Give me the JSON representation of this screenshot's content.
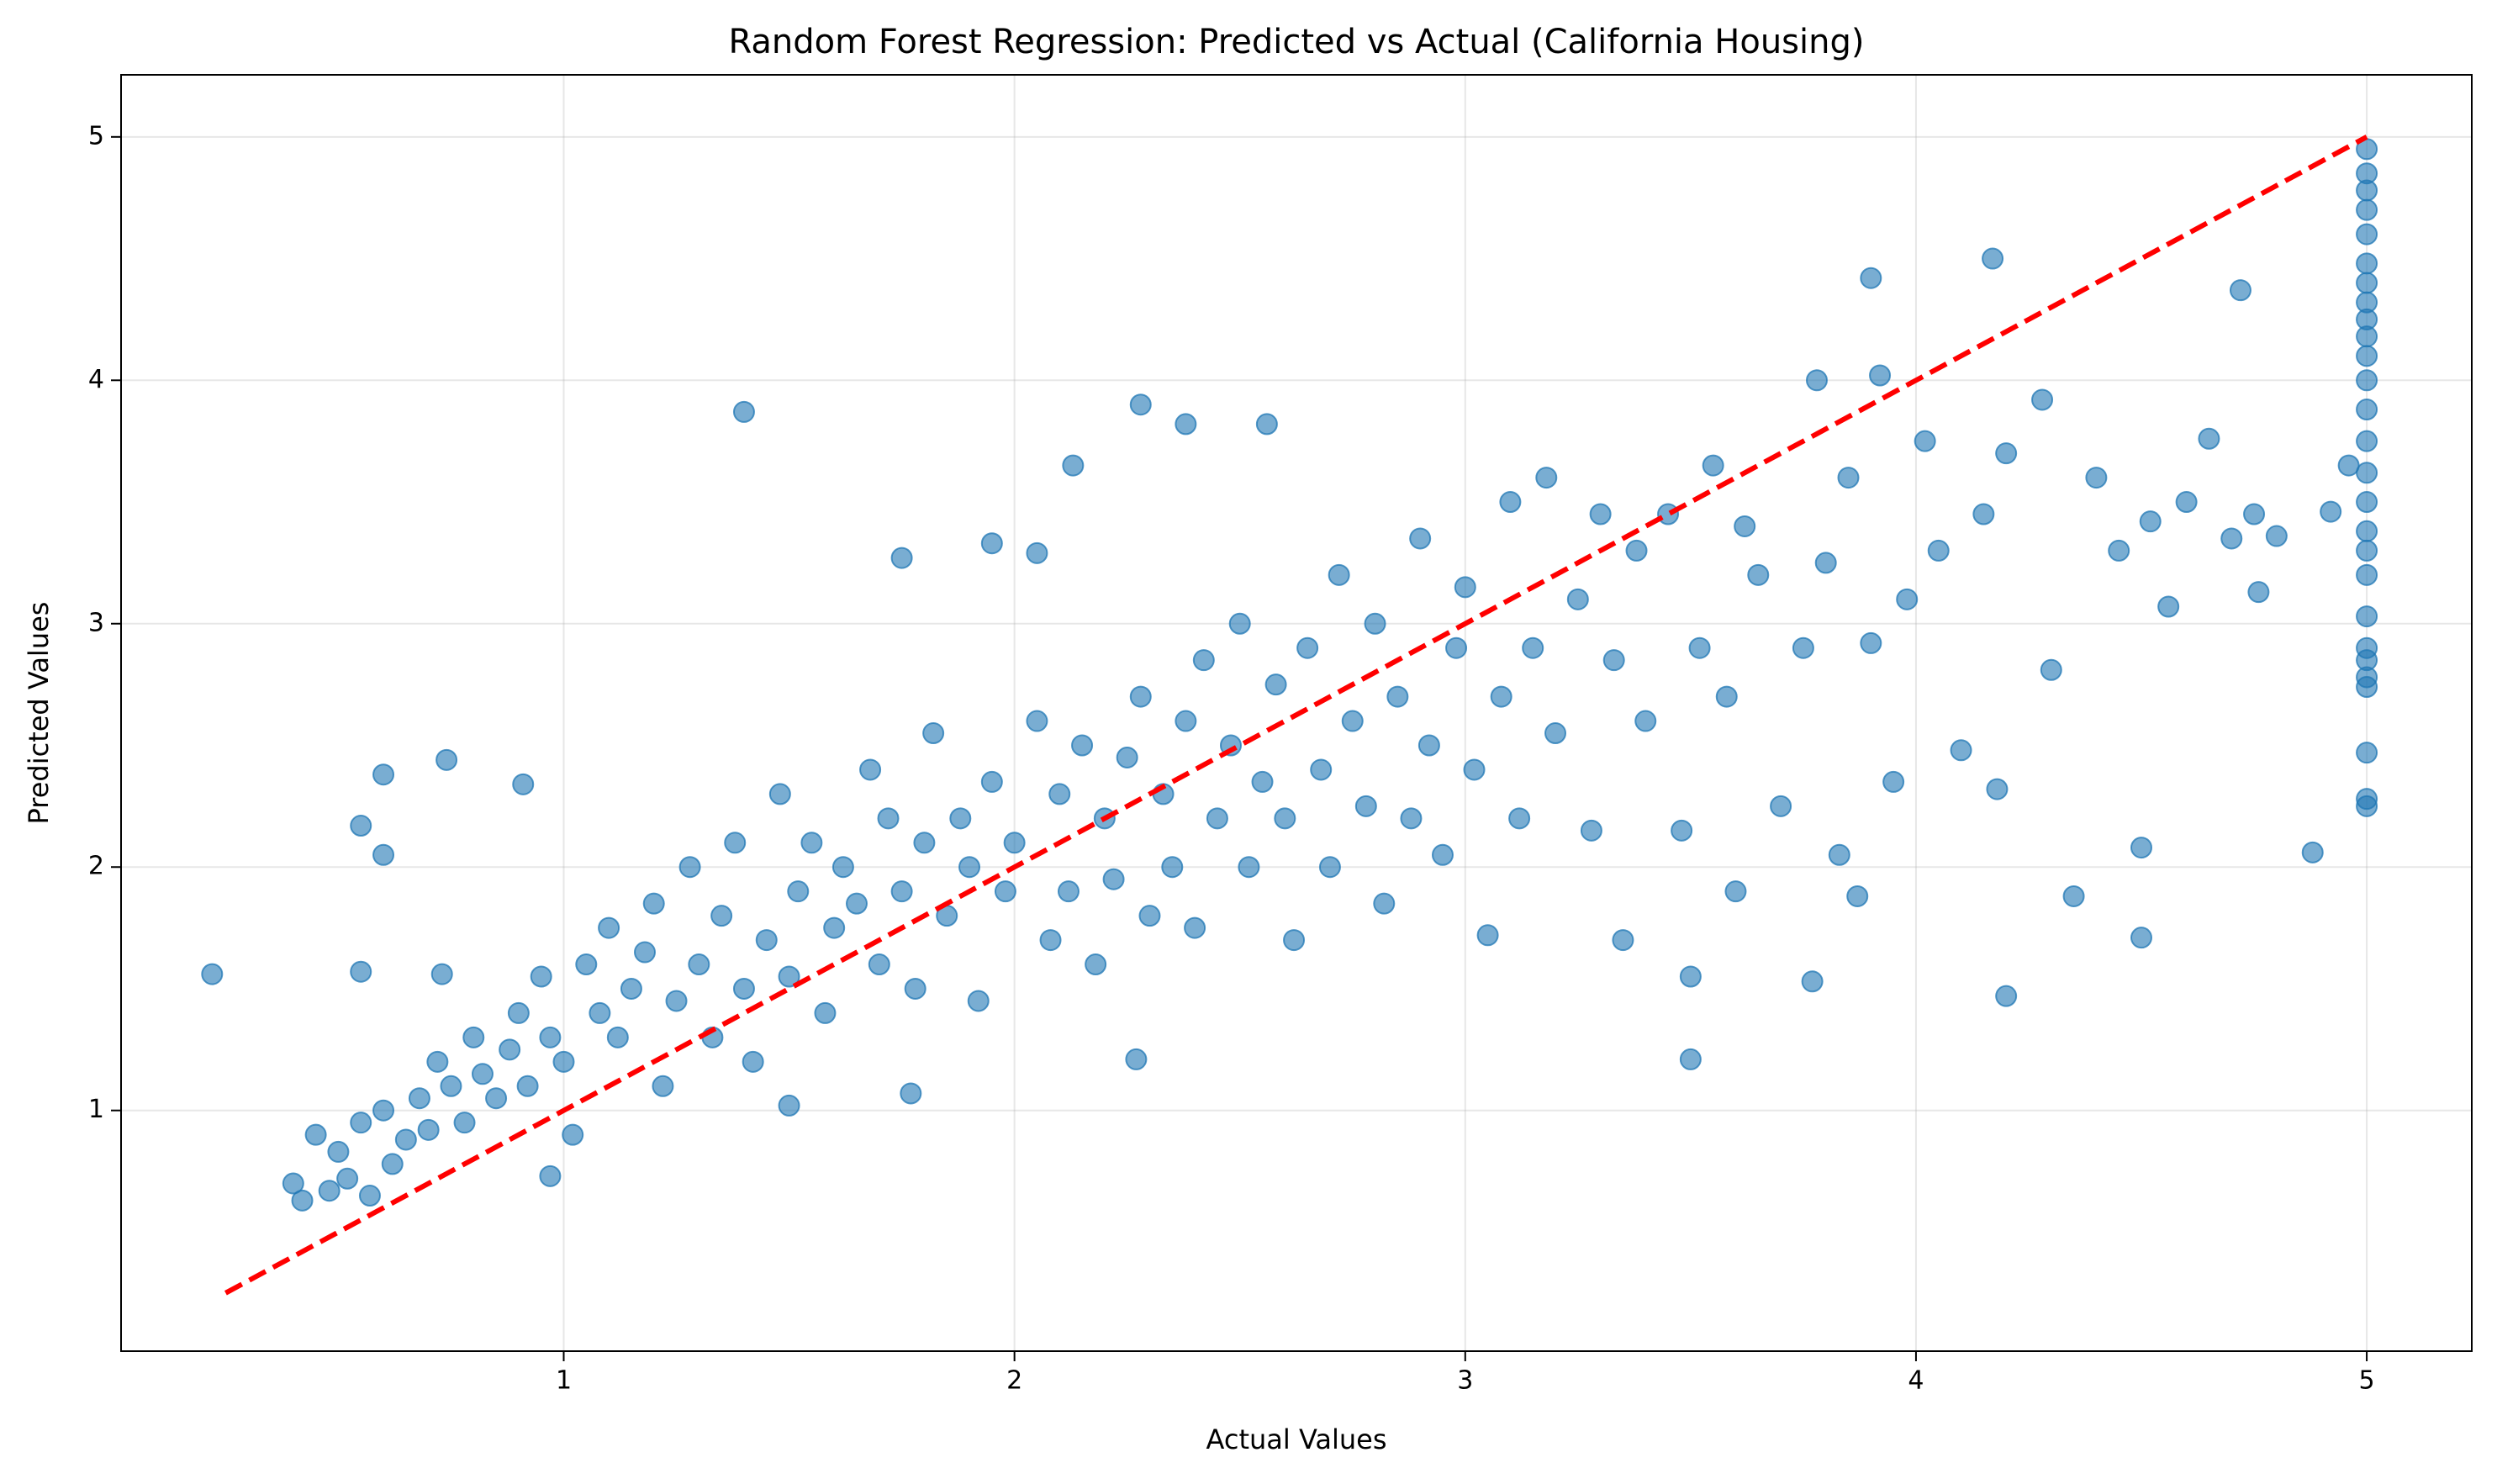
{
  "chart_data": {
    "type": "scatter",
    "title": "Random Forest Regression: Predicted vs Actual (California Housing)",
    "xlabel": "Actual Values",
    "ylabel": "Predicted Values",
    "color": "#1f77b4",
    "x": [
      0.22,
      1.4,
      2.28,
      2.38,
      2.56,
      4.17,
      3.9,
      4.72,
      3.5,
      2.27,
      4.2,
      4.88,
      0.6,
      0.74,
      0.91,
      0.55,
      0.6,
      0.55,
      0.73,
      1.75,
      1.95,
      2.13,
      2.05,
      1.77,
      1.5,
      0.97,
      0.4,
      0.42,
      0.45,
      0.48,
      0.5,
      0.52,
      0.55,
      0.57,
      0.6,
      0.62,
      0.65,
      0.68,
      0.7,
      0.72,
      0.75,
      0.78,
      0.8,
      0.82,
      0.85,
      0.88,
      0.9,
      0.92,
      0.95,
      0.97,
      1.0,
      1.02,
      1.05,
      1.08,
      1.1,
      1.12,
      1.15,
      1.18,
      1.2,
      1.22,
      1.25,
      1.28,
      1.3,
      1.33,
      1.35,
      1.38,
      1.4,
      1.42,
      1.45,
      1.48,
      1.5,
      1.52,
      1.55,
      1.58,
      1.6,
      1.62,
      1.65,
      1.68,
      1.7,
      1.72,
      1.75,
      1.78,
      1.8,
      1.82,
      1.85,
      1.88,
      1.9,
      1.92,
      1.95,
      1.98,
      2.0,
      2.05,
      2.08,
      2.1,
      2.12,
      2.15,
      2.18,
      2.2,
      2.22,
      2.25,
      2.28,
      2.3,
      2.33,
      2.35,
      2.38,
      2.4,
      2.42,
      2.45,
      2.48,
      2.5,
      2.52,
      2.55,
      2.58,
      2.6,
      2.62,
      2.65,
      2.68,
      2.7,
      2.72,
      2.75,
      2.78,
      2.8,
      2.82,
      2.85,
      2.88,
      2.9,
      2.92,
      2.95,
      2.98,
      3.0,
      3.02,
      3.05,
      3.08,
      3.1,
      3.12,
      3.15,
      3.18,
      3.2,
      3.25,
      3.28,
      3.3,
      3.33,
      3.35,
      3.38,
      3.4,
      3.45,
      3.48,
      3.5,
      3.52,
      3.55,
      3.58,
      3.6,
      3.62,
      3.65,
      3.7,
      3.75,
      3.77,
      3.78,
      3.8,
      3.83,
      3.85,
      3.87,
      3.9,
      3.92,
      3.95,
      3.98,
      4.02,
      4.05,
      4.1,
      4.15,
      4.18,
      4.2,
      4.28,
      4.3,
      4.35,
      4.4,
      4.45,
      4.5,
      4.5,
      4.52,
      4.56,
      4.6,
      4.65,
      4.7,
      4.75,
      4.76,
      4.8,
      4.92,
      4.96,
      5,
      5,
      5,
      5,
      5,
      5,
      5,
      5,
      5,
      5,
      5,
      5,
      5,
      5,
      5,
      5,
      5,
      5,
      5,
      5,
      5,
      5,
      5,
      5,
      5,
      5,
      5
    ],
    "values": [
      1.56,
      3.87,
      3.9,
      3.82,
      3.82,
      4.5,
      4.42,
      4.37,
      1.21,
      1.21,
      1.47,
      2.06,
      2.38,
      2.44,
      2.34,
      2.17,
      2.05,
      1.57,
      1.56,
      3.27,
      3.33,
      3.65,
      3.29,
      1.07,
      1.02,
      0.73,
      0.7,
      0.63,
      0.9,
      0.67,
      0.83,
      0.72,
      0.95,
      0.65,
      1.0,
      0.78,
      0.88,
      1.05,
      0.92,
      1.2,
      1.1,
      0.95,
      1.3,
      1.15,
      1.05,
      1.25,
      1.4,
      1.1,
      1.55,
      1.3,
      1.2,
      0.9,
      1.6,
      1.4,
      1.75,
      1.3,
      1.5,
      1.65,
      1.85,
      1.1,
      1.45,
      2.0,
      1.6,
      1.3,
      1.8,
      2.1,
      1.5,
      1.2,
      1.7,
      2.3,
      1.55,
      1.9,
      2.1,
      1.4,
      1.75,
      2.0,
      1.85,
      2.4,
      1.6,
      2.2,
      1.9,
      1.5,
      2.1,
      2.55,
      1.8,
      2.2,
      2.0,
      1.45,
      2.35,
      1.9,
      2.1,
      2.6,
      1.7,
      2.3,
      1.9,
      2.5,
      1.6,
      2.2,
      1.95,
      2.45,
      2.7,
      1.8,
      2.3,
      2.0,
      2.6,
      1.75,
      2.85,
      2.2,
      2.5,
      3.0,
      2.0,
      2.35,
      2.75,
      2.2,
      1.7,
      2.9,
      2.4,
      2.0,
      3.2,
      2.6,
      2.25,
      3.0,
      1.85,
      2.7,
      2.2,
      3.35,
      2.5,
      2.05,
      2.9,
      3.15,
      2.4,
      1.72,
      2.7,
      3.5,
      2.2,
      2.9,
      3.6,
      2.55,
      3.1,
      2.15,
      3.45,
      2.85,
      1.7,
      3.3,
      2.6,
      3.45,
      2.15,
      1.55,
      2.9,
      3.65,
      2.7,
      1.9,
      3.4,
      3.2,
      2.25,
      2.9,
      1.53,
      4.0,
      3.25,
      2.05,
      3.6,
      1.88,
      2.92,
      4.02,
      2.35,
      3.1,
      3.75,
      3.3,
      2.48,
      3.45,
      2.32,
      3.7,
      3.92,
      2.81,
      1.88,
      3.6,
      3.3,
      2.08,
      1.71,
      3.42,
      3.07,
      3.5,
      3.76,
      3.35,
      3.45,
      3.13,
      3.36,
      3.46,
      3.65,
      2.25,
      2.28,
      2.47,
      2.74,
      2.78,
      2.85,
      2.9,
      3.03,
      3.2,
      3.3,
      3.38,
      3.5,
      3.62,
      3.75,
      3.88,
      4.0,
      4.1,
      4.18,
      4.25,
      4.32,
      4.4,
      4.48,
      4.6,
      4.7,
      4.78,
      4.85,
      4.95
    ],
    "line": {
      "x": [
        0.25,
        5
      ],
      "values": [
        0.25,
        5
      ],
      "color": "#ff0000"
    },
    "xlim": [
      0.018,
      5.233
    ],
    "ylim": [
      0.011,
      5.255
    ],
    "xticks": [
      1,
      2,
      3,
      4,
      5
    ],
    "yticks": [
      1,
      2,
      3,
      4,
      5
    ],
    "grid": true
  }
}
